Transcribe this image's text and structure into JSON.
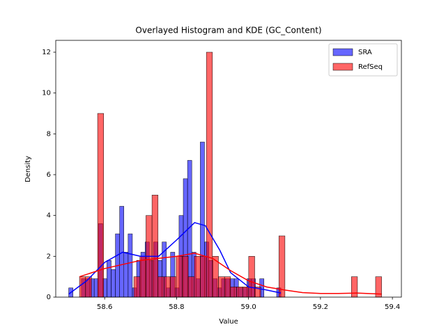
{
  "chart_data": {
    "type": "histogram",
    "title": "Overlayed Histogram and KDE (GC_Content)",
    "x_label": "Value",
    "y_label": "Density",
    "xlim": [
      58.464,
      59.425
    ],
    "ylim": [
      0,
      12.58
    ],
    "xticks": [
      58.6,
      58.8,
      {
        "value": 59,
        "label": "59.0"
      },
      59.2,
      59.4
    ],
    "yticks": [
      0,
      2,
      4,
      6,
      8,
      10,
      12
    ],
    "grid": false,
    "legend": "upper right",
    "series": [
      {
        "name": "SRA",
        "color": "blue",
        "bins": [
          58.5,
          58.5118,
          58.5236,
          58.5354,
          58.5472,
          58.559,
          58.5708,
          58.5826,
          58.5944,
          58.6062,
          58.618,
          58.6298,
          58.6416,
          58.6534,
          58.6652,
          58.677,
          58.6888,
          58.7006,
          58.7124,
          58.7242,
          58.736,
          58.7478,
          58.7596,
          58.7714,
          58.7832,
          58.795,
          58.8068,
          58.8186,
          58.8304,
          58.8422,
          58.854,
          58.8658,
          58.8776,
          58.8894,
          58.9012,
          58.913,
          58.9248,
          58.9366,
          58.9484,
          58.9602,
          58.972,
          58.9838,
          58.9956,
          59.0074,
          59.0192,
          59.031,
          59.0428,
          59.0546,
          59.0664,
          59.0782,
          59.09
        ],
        "values": [
          0.45,
          0,
          0,
          0.9,
          0.9,
          0.9,
          0.9,
          3.6,
          0.9,
          1.8,
          1.35,
          3.1,
          4.45,
          2.2,
          3.1,
          0.45,
          1.8,
          2.2,
          2.7,
          1.8,
          2.7,
          1.8,
          2.7,
          0.45,
          2.2,
          0.45,
          4.0,
          5.8,
          6.7,
          2.2,
          0.9,
          7.6,
          2.7,
          1.8,
          0.9,
          0.45,
          0.9,
          0.9,
          0.9,
          0.9,
          0.45,
          0.45,
          0.9,
          0.9,
          0,
          0.9,
          0,
          0,
          0,
          0.45
        ],
        "kde": {
          "x": [
            58.5,
            58.55,
            58.6,
            58.65,
            58.7,
            58.75,
            58.8,
            58.85,
            58.88,
            58.92,
            58.95,
            59.0,
            59.05,
            59.09
          ],
          "values": [
            0.15,
            0.8,
            1.7,
            2.2,
            2.0,
            2.0,
            2.8,
            3.65,
            3.5,
            2.3,
            1.2,
            0.5,
            0.35,
            0.2
          ]
        }
      },
      {
        "name": "RefSeq",
        "color": "red",
        "bins": [
          58.53,
          58.5468,
          58.5636,
          58.5804,
          58.5972,
          58.614,
          58.6308,
          58.6476,
          58.6644,
          58.6812,
          58.698,
          58.7148,
          58.7316,
          58.7484,
          58.7652,
          58.782,
          58.7988,
          58.8156,
          58.8324,
          58.8492,
          58.866,
          58.8828,
          58.8996,
          58.9164,
          58.9332,
          58.95,
          58.9668,
          58.9836,
          59.0004,
          59.0172,
          59.034,
          59.0508,
          59.0676,
          59.0844,
          59.1012,
          59.118,
          59.1348,
          59.1516,
          59.1684,
          59.1852,
          59.202,
          59.2188,
          59.2356,
          59.2524,
          59.2692,
          59.286,
          59.3028,
          59.3196,
          59.3364,
          59.3532,
          59.37
        ],
        "values": [
          1,
          1,
          0,
          9,
          0,
          0,
          0,
          0,
          0,
          1,
          2,
          4,
          5,
          1,
          1,
          1,
          2,
          2,
          1,
          2,
          2,
          12,
          2,
          1,
          1,
          0.5,
          0.5,
          0.5,
          2,
          0.5,
          0,
          0,
          0,
          3,
          0,
          0,
          0,
          0,
          0,
          0,
          0,
          0,
          0,
          0,
          0,
          1,
          0,
          0,
          0,
          1
        ],
        "kde": {
          "x": [
            58.53,
            58.6,
            58.65,
            58.7,
            58.75,
            58.8,
            58.85,
            58.9,
            58.95,
            59.0,
            59.05,
            59.1,
            59.15,
            59.2,
            59.25,
            59.3,
            59.37
          ],
          "values": [
            1.0,
            1.4,
            1.6,
            1.8,
            1.9,
            2.0,
            2.15,
            1.9,
            1.3,
            0.8,
            0.5,
            0.35,
            0.22,
            0.18,
            0.18,
            0.2,
            0.15
          ]
        }
      }
    ]
  }
}
